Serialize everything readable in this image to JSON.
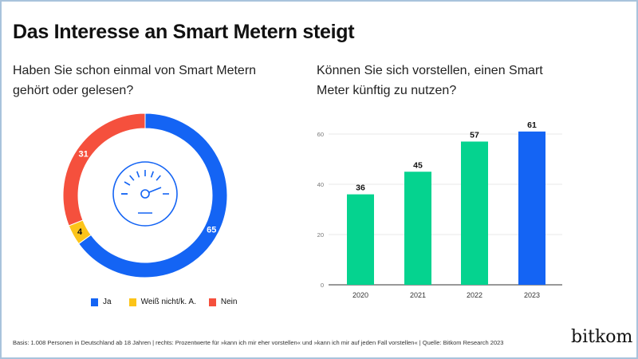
{
  "title": "Das Interesse an Smart Metern steigt",
  "left_question": "Haben Sie schon einmal von Smart Metern gehört oder gelesen?",
  "right_question": "Können Sie sich vorstellen, einen Smart Meter künftig zu nutzen?",
  "footer": "Basis: 1.008 Personen in Deutschland ab 18 Jahren | rechts: Prozentwerte für »kann ich mir eher vorstellen« und »kann ich mir auf jeden Fall vorstellen« | Quelle: Bitkom Research 2023",
  "logo": "bitkom",
  "center_icon": "gauge-icon",
  "chart_data": [
    {
      "type": "pie",
      "subtype": "donut",
      "title": "Haben Sie schon einmal von Smart Metern gehört oder gelesen?",
      "categories": [
        "Ja",
        "Weiß nicht/k. A.",
        "Nein"
      ],
      "values": [
        65,
        4,
        31
      ],
      "colors": [
        "#1464f4",
        "#fcc419",
        "#f5503d"
      ],
      "legend": "bottom"
    },
    {
      "type": "bar",
      "title": "Können Sie sich vorstellen, einen Smart Meter künftig zu nutzen?",
      "categories": [
        "2020",
        "2021",
        "2022",
        "2023"
      ],
      "values": [
        36,
        45,
        57,
        61
      ],
      "colors": [
        "#05d38f",
        "#05d38f",
        "#05d38f",
        "#1464f4"
      ],
      "ylim": [
        0,
        65
      ],
      "yticks": [
        0,
        20,
        40,
        60
      ],
      "grid": true
    }
  ]
}
